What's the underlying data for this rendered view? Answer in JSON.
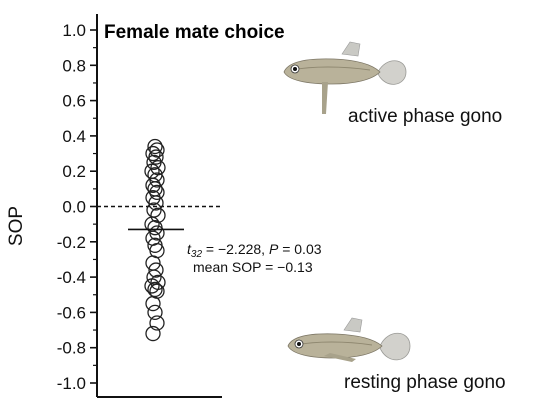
{
  "chart_data": {
    "type": "scatter",
    "title": "Female mate choice",
    "xlabel": "",
    "ylabel": "SOP",
    "ylim": [
      -1.0,
      1.0
    ],
    "yticks": [
      "1.0",
      "0.8",
      "0.6",
      "0.4",
      "0.2",
      "0.0",
      "-0.2",
      "-0.4",
      "-0.6",
      "-0.8",
      "-1.0"
    ],
    "reference_line": {
      "y": 0.0,
      "style": "dashed"
    },
    "mean": -0.13,
    "stats": {
      "t_symbol": "t",
      "t_sub": "32",
      "t_rest": " = −2.228, ",
      "p_symbol": "P",
      "p_rest": " = 0.03",
      "mean_text": "mean SOP = −0.13"
    },
    "series": [
      {
        "values": [
          0.34,
          0.32,
          0.3,
          0.28,
          0.25,
          0.22,
          0.2,
          0.18,
          0.15,
          0.12,
          0.1,
          0.08,
          0.05,
          0.02,
          -0.02,
          -0.05,
          -0.1,
          -0.12,
          -0.15,
          -0.18,
          -0.22,
          -0.25,
          -0.32,
          -0.36,
          -0.4,
          -0.43,
          -0.45,
          -0.47,
          -0.48,
          -0.55,
          -0.6,
          -0.66,
          -0.72
        ]
      }
    ],
    "annotations": {
      "top_label": "active phase gono",
      "bottom_label": "resting phase gono"
    },
    "colors": {
      "ink": "#111111",
      "fish_body": "#b9b29a",
      "fish_fin": "#c9c9c4"
    }
  }
}
